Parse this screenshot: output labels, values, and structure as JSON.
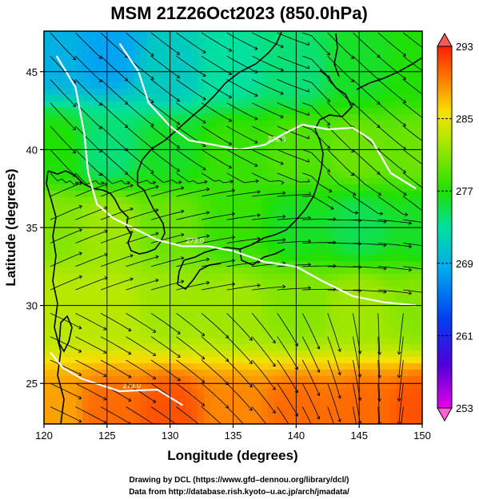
{
  "chart_data": {
    "type": "heatmap",
    "title": "MSM 21Z26Oct2023 (850.0hPa)",
    "xlabel": "Longitude (degrees)",
    "ylabel": "Latitude  (degrees)",
    "xlim": [
      120,
      150
    ],
    "ylim": [
      22.4,
      47.6
    ],
    "xticks": [
      "120",
      "125",
      "130",
      "135",
      "140",
      "145",
      "150"
    ],
    "yticks": [
      "25",
      "30",
      "35",
      "40",
      "45"
    ],
    "ytick_values": [
      25,
      30,
      35,
      40,
      45
    ],
    "colorbar": {
      "min": 253,
      "max": 293,
      "ticks": [
        "253",
        "261",
        "269",
        "277",
        "285",
        "293"
      ],
      "tick_values": [
        253,
        261,
        269,
        277,
        285,
        293
      ]
    },
    "contours": [
      {
        "label": "273.0",
        "points": [
          [
            121.0,
            46.0
          ],
          [
            122.5,
            44.0
          ],
          [
            123.2,
            41.0
          ],
          [
            123.5,
            38.5
          ],
          [
            124.2,
            36.5
          ],
          [
            125.5,
            35.6
          ],
          [
            127.0,
            35.0
          ],
          [
            129.0,
            34.2
          ],
          [
            131.0,
            33.8
          ],
          [
            133.0,
            33.8
          ],
          [
            135.0,
            33.5
          ],
          [
            137.5,
            32.8
          ],
          [
            140.0,
            32.5
          ],
          [
            142.0,
            31.6
          ],
          [
            144.5,
            30.6
          ],
          [
            147.0,
            30.2
          ],
          [
            149.5,
            30.0
          ]
        ]
      },
      {
        "label": "276.0",
        "points": [
          [
            126.0,
            46.8
          ],
          [
            127.5,
            45.0
          ],
          [
            128.3,
            43.0
          ],
          [
            130.0,
            41.5
          ],
          [
            131.5,
            40.6
          ],
          [
            133.5,
            40.3
          ],
          [
            135.5,
            40.0
          ],
          [
            137.5,
            40.3
          ],
          [
            139.0,
            41.0
          ],
          [
            140.5,
            41.6
          ],
          [
            142.5,
            41.3
          ],
          [
            144.5,
            41.4
          ],
          [
            146.0,
            40.6
          ],
          [
            147.5,
            38.5
          ],
          [
            149.5,
            37.5
          ]
        ]
      },
      {
        "label": "273.0",
        "points": [
          [
            120.5,
            27.0
          ],
          [
            121.5,
            26.0
          ],
          [
            123.0,
            25.3
          ],
          [
            126.0,
            24.5
          ],
          [
            129.0,
            24.6
          ],
          [
            131.0,
            23.6
          ]
        ]
      }
    ],
    "field_description_points": [
      {
        "lon": 121,
        "lat": 46,
        "value": 269
      },
      {
        "lon": 125,
        "lat": 46,
        "value": 268
      },
      {
        "lon": 130,
        "lat": 45,
        "value": 271
      },
      {
        "lon": 135,
        "lat": 45,
        "value": 273
      },
      {
        "lon": 140,
        "lat": 45,
        "value": 274
      },
      {
        "lon": 145,
        "lat": 45,
        "value": 276
      },
      {
        "lon": 150,
        "lat": 45,
        "value": 277
      },
      {
        "lon": 121,
        "lat": 40,
        "value": 277
      },
      {
        "lon": 125,
        "lat": 40,
        "value": 274
      },
      {
        "lon": 130,
        "lat": 40,
        "value": 276
      },
      {
        "lon": 135,
        "lat": 40,
        "value": 278
      },
      {
        "lon": 140,
        "lat": 40,
        "value": 279
      },
      {
        "lon": 145,
        "lat": 40,
        "value": 280
      },
      {
        "lon": 150,
        "lat": 40,
        "value": 280
      },
      {
        "lon": 121,
        "lat": 35,
        "value": 281
      },
      {
        "lon": 125,
        "lat": 35,
        "value": 282
      },
      {
        "lon": 130,
        "lat": 35,
        "value": 280
      },
      {
        "lon": 135,
        "lat": 35,
        "value": 278
      },
      {
        "lon": 140,
        "lat": 35,
        "value": 276
      },
      {
        "lon": 145,
        "lat": 35,
        "value": 275
      },
      {
        "lon": 150,
        "lat": 35,
        "value": 276
      },
      {
        "lon": 121,
        "lat": 30,
        "value": 283
      },
      {
        "lon": 125,
        "lat": 30,
        "value": 283
      },
      {
        "lon": 130,
        "lat": 30,
        "value": 282
      },
      {
        "lon": 135,
        "lat": 30,
        "value": 282
      },
      {
        "lon": 140,
        "lat": 30,
        "value": 281
      },
      {
        "lon": 145,
        "lat": 30,
        "value": 282
      },
      {
        "lon": 150,
        "lat": 30,
        "value": 281
      },
      {
        "lon": 121,
        "lat": 23,
        "value": 288
      },
      {
        "lon": 125,
        "lat": 23,
        "value": 290
      },
      {
        "lon": 130,
        "lat": 23,
        "value": 291
      },
      {
        "lon": 135,
        "lat": 23,
        "value": 289
      },
      {
        "lon": 140,
        "lat": 23,
        "value": 290
      },
      {
        "lon": 145,
        "lat": 23,
        "value": 290
      },
      {
        "lon": 150,
        "lat": 23,
        "value": 291
      }
    ],
    "grid": true
  },
  "credits": {
    "line1": "Drawing by DCL (https://www.gfd–dennou.org/library/dcl/)",
    "line2": "Data from http://database.rish.kyoto–u.ac.jp/arch/jmadata/"
  }
}
